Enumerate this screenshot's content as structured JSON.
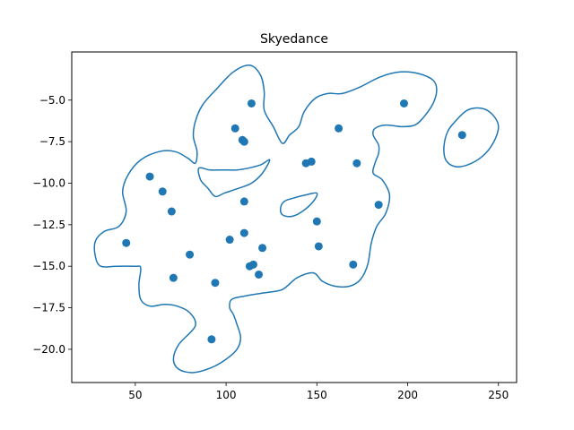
{
  "chart_data": {
    "type": "scatter",
    "title": "Skyedance",
    "xlabel": "",
    "ylabel": "",
    "xlim": [
      15,
      260
    ],
    "ylim": [
      -22,
      -2.1
    ],
    "xticks": [
      50,
      100,
      150,
      200,
      250
    ],
    "yticks": [
      -20.0,
      -17.5,
      -15.0,
      -12.5,
      -10.0,
      -7.5,
      -5.0
    ],
    "xtick_labels": [
      "50",
      "100",
      "150",
      "200",
      "250"
    ],
    "ytick_labels": [
      "−20.0",
      "−17.5",
      "−15.0",
      "−12.5",
      "−10.0",
      "−7.5",
      "−5.0"
    ],
    "grid": false,
    "color": "#1f77b4",
    "points": [
      {
        "x": 45,
        "y": -13.6
      },
      {
        "x": 58,
        "y": -9.6
      },
      {
        "x": 65,
        "y": -10.5
      },
      {
        "x": 70,
        "y": -11.7
      },
      {
        "x": 71,
        "y": -15.7
      },
      {
        "x": 80,
        "y": -14.3
      },
      {
        "x": 92,
        "y": -19.4
      },
      {
        "x": 94,
        "y": -16.0
      },
      {
        "x": 102,
        "y": -13.4
      },
      {
        "x": 105,
        "y": -6.7
      },
      {
        "x": 109,
        "y": -7.4
      },
      {
        "x": 110,
        "y": -7.5
      },
      {
        "x": 110,
        "y": -11.1
      },
      {
        "x": 110,
        "y": -13.0
      },
      {
        "x": 113,
        "y": -15.0
      },
      {
        "x": 114,
        "y": -5.2
      },
      {
        "x": 115,
        "y": -14.9
      },
      {
        "x": 118,
        "y": -15.5
      },
      {
        "x": 120,
        "y": -13.9
      },
      {
        "x": 144,
        "y": -8.8
      },
      {
        "x": 147,
        "y": -8.7
      },
      {
        "x": 150,
        "y": -12.3
      },
      {
        "x": 151,
        "y": -13.8
      },
      {
        "x": 162,
        "y": -6.7
      },
      {
        "x": 170,
        "y": -14.9
      },
      {
        "x": 172,
        "y": -8.8
      },
      {
        "x": 184,
        "y": -11.3
      },
      {
        "x": 198,
        "y": -5.2
      },
      {
        "x": 230,
        "y": -7.1
      }
    ],
    "contours": [
      [
        [
          131,
          -7.6
        ],
        [
          126,
          -6.6
        ],
        [
          121,
          -5.6
        ],
        [
          121,
          -4.5
        ],
        [
          119,
          -3.5
        ],
        [
          113,
          -2.9
        ],
        [
          104,
          -3.3
        ],
        [
          95,
          -4.3
        ],
        [
          87,
          -5.3
        ],
        [
          83,
          -6.3
        ],
        [
          82,
          -7.2
        ],
        [
          84,
          -8.1
        ],
        [
          83,
          -8.8
        ],
        [
          79,
          -8.5
        ],
        [
          72,
          -8.1
        ],
        [
          63,
          -8.1
        ],
        [
          53,
          -8.6
        ],
        [
          46,
          -9.5
        ],
        [
          43,
          -10.5
        ],
        [
          45,
          -11.7
        ],
        [
          41,
          -12.6
        ],
        [
          33,
          -12.9
        ],
        [
          28,
          -13.5
        ],
        [
          28,
          -14.4
        ],
        [
          31,
          -15.0
        ],
        [
          40,
          -15.0
        ],
        [
          50,
          -15.0
        ],
        [
          53,
          -15.1
        ],
        [
          52,
          -16.1
        ],
        [
          53,
          -17.0
        ],
        [
          58,
          -17.4
        ],
        [
          66,
          -17.3
        ],
        [
          73,
          -17.4
        ],
        [
          80,
          -17.8
        ],
        [
          83,
          -18.6
        ],
        [
          74,
          -19.7
        ],
        [
          71,
          -20.6
        ],
        [
          74,
          -21.2
        ],
        [
          82,
          -21.4
        ],
        [
          92,
          -21.1
        ],
        [
          100,
          -20.6
        ],
        [
          106,
          -20.0
        ],
        [
          108,
          -19.3
        ],
        [
          106,
          -18.5
        ],
        [
          104,
          -17.9
        ],
        [
          102,
          -17.5
        ],
        [
          103,
          -17.0
        ],
        [
          110,
          -16.8
        ],
        [
          121,
          -16.6
        ],
        [
          131,
          -16.4
        ],
        [
          139,
          -15.7
        ],
        [
          148,
          -15.4
        ],
        [
          153,
          -15.9
        ],
        [
          160,
          -16.2
        ],
        [
          168,
          -16.2
        ],
        [
          174,
          -15.8
        ],
        [
          178,
          -14.9
        ],
        [
          180,
          -13.6
        ],
        [
          183,
          -12.6
        ],
        [
          188,
          -11.8
        ],
        [
          190,
          -10.7
        ],
        [
          186,
          -9.8
        ],
        [
          181,
          -9.4
        ],
        [
          182,
          -8.8
        ],
        [
          184,
          -8.2
        ],
        [
          184,
          -7.7
        ],
        [
          181,
          -7.1
        ],
        [
          182,
          -6.7
        ],
        [
          188,
          -6.5
        ],
        [
          197,
          -6.6
        ],
        [
          204,
          -6.5
        ],
        [
          209,
          -6.0
        ],
        [
          214,
          -5.2
        ],
        [
          216,
          -4.4
        ],
        [
          214,
          -3.8
        ],
        [
          206,
          -3.4
        ],
        [
          196,
          -3.3
        ],
        [
          185,
          -3.6
        ],
        [
          174,
          -4.2
        ],
        [
          164,
          -4.6
        ],
        [
          156,
          -4.6
        ],
        [
          149,
          -4.9
        ],
        [
          143,
          -5.7
        ],
        [
          140,
          -6.6
        ],
        [
          135,
          -7.1
        ],
        [
          131,
          -7.6
        ]
      ],
      [
        [
          85,
          -9.1
        ],
        [
          91,
          -9.2
        ],
        [
          99,
          -9.2
        ],
        [
          106,
          -9.2
        ],
        [
          112,
          -9.1
        ],
        [
          119,
          -8.9
        ],
        [
          124,
          -8.6
        ],
        [
          120,
          -9.4
        ],
        [
          114,
          -10.0
        ],
        [
          107,
          -10.3
        ],
        [
          99,
          -10.6
        ],
        [
          94,
          -10.8
        ],
        [
          90,
          -10.3
        ],
        [
          86,
          -9.8
        ],
        [
          85,
          -9.1
        ]
      ],
      [
        [
          132,
          -11.1
        ],
        [
          137,
          -10.9
        ],
        [
          144,
          -10.7
        ],
        [
          150,
          -10.6
        ],
        [
          148,
          -11.1
        ],
        [
          142,
          -11.7
        ],
        [
          136,
          -12.0
        ],
        [
          131,
          -11.9
        ],
        [
          130,
          -11.5
        ],
        [
          132,
          -11.1
        ]
      ],
      [
        [
          226,
          -6.3
        ],
        [
          233,
          -5.6
        ],
        [
          241,
          -5.5
        ],
        [
          247,
          -5.9
        ],
        [
          250,
          -6.6
        ],
        [
          247,
          -7.6
        ],
        [
          241,
          -8.4
        ],
        [
          233,
          -8.9
        ],
        [
          226,
          -9.0
        ],
        [
          221,
          -8.6
        ],
        [
          220,
          -7.8
        ],
        [
          222,
          -6.9
        ],
        [
          226,
          -6.3
        ]
      ]
    ]
  }
}
